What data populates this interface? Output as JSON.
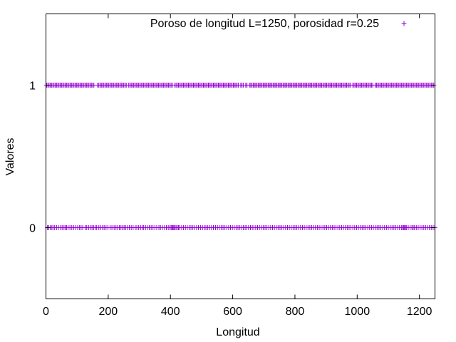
{
  "chart_data": {
    "type": "scatter",
    "title": "",
    "xlabel": "Longitud",
    "ylabel": "Valores",
    "xlim": [
      0,
      1250
    ],
    "ylim": [
      -0.5,
      1.5
    ],
    "xticks": [
      0,
      200,
      400,
      600,
      800,
      1000,
      1200
    ],
    "yticks": [
      0,
      1
    ],
    "grid": false,
    "legend_position": "top-right",
    "series": [
      {
        "name": "Poroso de longitud L=1250, porosidad r=0.25",
        "color": "#9400d3",
        "marker": "plus",
        "zeros_x": [
          5,
          9,
          14,
          19,
          23,
          28,
          34,
          40,
          47,
          52,
          58,
          63,
          66,
          71,
          77,
          83,
          89,
          96,
          102,
          108,
          113,
          118,
          126,
          131,
          137,
          142,
          148,
          153,
          158,
          163,
          170,
          176,
          182,
          187,
          193,
          199,
          206,
          212,
          219,
          225,
          230,
          236,
          241,
          246,
          251,
          256,
          262,
          268,
          274,
          280,
          287,
          292,
          298,
          304,
          309,
          314,
          320,
          326,
          332,
          338,
          344,
          350,
          356,
          363,
          368,
          374,
          381,
          387,
          393,
          398,
          402,
          405,
          408,
          411,
          414,
          418,
          422,
          426,
          430,
          436,
          442,
          448,
          454,
          460,
          466,
          472,
          478,
          484,
          490,
          497,
          503,
          509,
          514,
          520,
          526,
          532,
          538,
          545,
          551,
          557,
          563,
          569,
          575,
          581,
          587,
          593,
          599,
          605,
          611,
          617,
          623,
          629,
          634,
          640,
          645,
          651,
          657,
          663,
          668,
          674,
          680,
          686,
          692,
          698,
          704,
          710,
          716,
          722,
          728,
          734,
          740,
          746,
          752,
          758,
          764,
          770,
          776,
          782,
          788,
          794,
          800,
          806,
          812,
          818,
          824,
          830,
          836,
          842,
          848,
          854,
          860,
          866,
          872,
          878,
          884,
          890,
          896,
          902,
          908,
          914,
          920,
          926,
          932,
          938,
          944,
          950,
          956,
          962,
          968,
          974,
          980,
          986,
          992,
          998,
          1004,
          1010,
          1016,
          1022,
          1028,
          1034,
          1040,
          1046,
          1052,
          1058,
          1064,
          1070,
          1076,
          1082,
          1088,
          1094,
          1100,
          1106,
          1112,
          1118,
          1124,
          1130,
          1136,
          1142,
          1146,
          1149,
          1152,
          1155,
          1158,
          1164,
          1170,
          1176,
          1180,
          1184,
          1190,
          1196,
          1202,
          1208,
          1214,
          1220,
          1226,
          1232,
          1238,
          1244,
          1249
        ],
        "ones_range": [
          0,
          1250
        ],
        "ones_gaps": [
          160,
          261,
          410,
          621,
          637,
          649,
          983,
          1054
        ]
      }
    ]
  }
}
